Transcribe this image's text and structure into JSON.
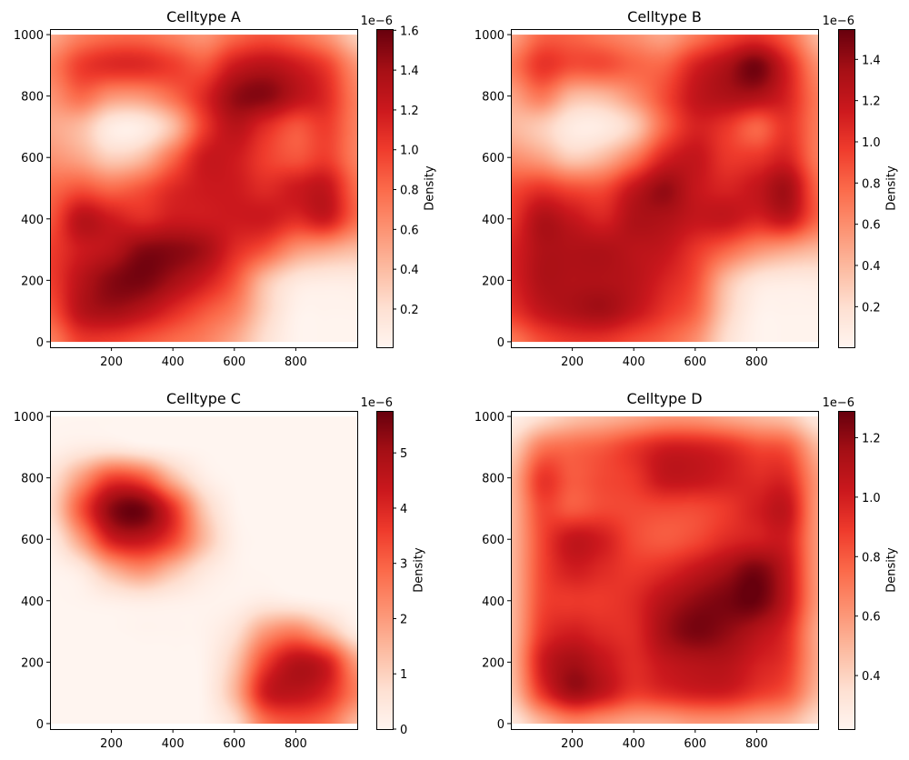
{
  "colormap": "Reds",
  "colormap_stops": [
    "#fff5f0",
    "#fee0d2",
    "#fcbba1",
    "#fc9272",
    "#fb6a4a",
    "#ef3b2c",
    "#cb181d",
    "#a50f15",
    "#67000d"
  ],
  "chart_data": [
    {
      "type": "heatmap",
      "title": "Celltype A",
      "xlim": [
        0,
        1000
      ],
      "ylim": [
        -18,
        1018
      ],
      "xticks": [
        200,
        400,
        600,
        800
      ],
      "xtick_labels": [
        "200",
        "400",
        "600",
        "800"
      ],
      "yticks": [
        0,
        200,
        400,
        600,
        800,
        1000
      ],
      "ytick_labels": [
        "0",
        "200",
        "400",
        "600",
        "800",
        "1000"
      ],
      "x": [
        0,
        100,
        200,
        300,
        400,
        500,
        600,
        700,
        800,
        900,
        1000
      ],
      "y": [
        1000,
        900,
        800,
        700,
        600,
        500,
        400,
        300,
        200,
        100,
        0
      ],
      "z": [
        [
          0.5,
          0.7,
          0.8,
          0.8,
          0.7,
          0.6,
          0.8,
          0.9,
          0.8,
          0.6,
          0.3
        ],
        [
          0.7,
          1.0,
          1.1,
          1.1,
          1.0,
          0.9,
          1.2,
          1.3,
          1.2,
          1.0,
          0.6
        ],
        [
          0.6,
          0.8,
          0.6,
          0.6,
          0.8,
          1.1,
          1.45,
          1.5,
          1.3,
          1.1,
          0.7
        ],
        [
          0.5,
          0.4,
          0.1,
          0.1,
          0.4,
          1.0,
          1.3,
          1.1,
          0.9,
          1.0,
          0.7
        ],
        [
          0.6,
          0.5,
          0.3,
          0.4,
          0.8,
          1.2,
          1.2,
          1.0,
          0.9,
          1.0,
          0.7
        ],
        [
          0.8,
          0.9,
          0.8,
          0.9,
          1.1,
          1.2,
          1.2,
          1.1,
          1.2,
          1.25,
          0.8
        ],
        [
          0.9,
          1.3,
          1.2,
          1.1,
          1.2,
          1.2,
          1.2,
          1.2,
          1.1,
          1.2,
          0.8
        ],
        [
          1.0,
          1.2,
          1.3,
          1.5,
          1.5,
          1.4,
          1.1,
          0.9,
          0.6,
          0.5,
          0.4
        ],
        [
          1.0,
          1.3,
          1.5,
          1.55,
          1.4,
          1.2,
          0.9,
          0.4,
          0.15,
          0.1,
          0.1
        ],
        [
          0.9,
          1.3,
          1.4,
          1.3,
          1.1,
          0.9,
          0.7,
          0.3,
          0.05,
          0.03,
          0.03
        ],
        [
          0.7,
          1.0,
          1.0,
          0.9,
          0.8,
          0.7,
          0.5,
          0.2,
          0.03,
          0.02,
          0.02
        ]
      ],
      "colorbar": {
        "label": "Density",
        "offset_text": "1e−6",
        "range": [
          0.008,
          1.606
        ],
        "ticks": [
          0.2,
          0.4,
          0.6,
          0.8,
          1.0,
          1.2,
          1.4,
          1.6
        ],
        "tick_labels": [
          "0.2",
          "0.4",
          "0.6",
          "0.8",
          "1.0",
          "1.2",
          "1.4",
          "1.6"
        ]
      }
    },
    {
      "type": "heatmap",
      "title": "Celltype B",
      "xlim": [
        0,
        1000
      ],
      "ylim": [
        -18,
        1018
      ],
      "xticks": [
        200,
        400,
        600,
        800
      ],
      "xtick_labels": [
        "200",
        "400",
        "600",
        "800"
      ],
      "yticks": [
        0,
        200,
        400,
        600,
        800,
        1000
      ],
      "ytick_labels": [
        "0",
        "200",
        "400",
        "600",
        "800",
        "1000"
      ],
      "x": [
        0,
        100,
        200,
        300,
        400,
        500,
        600,
        700,
        800,
        900,
        1000
      ],
      "y": [
        1000,
        900,
        800,
        700,
        600,
        500,
        400,
        300,
        200,
        100,
        0
      ],
      "z": [
        [
          0.5,
          0.8,
          0.8,
          0.7,
          0.6,
          0.5,
          0.7,
          0.9,
          1.0,
          0.8,
          0.4
        ],
        [
          0.7,
          1.0,
          0.9,
          0.9,
          0.8,
          0.8,
          1.1,
          1.3,
          1.5,
          1.1,
          0.6
        ],
        [
          0.5,
          0.7,
          0.4,
          0.4,
          0.6,
          0.9,
          1.2,
          1.3,
          1.3,
          1.1,
          0.7
        ],
        [
          0.4,
          0.3,
          0.1,
          0.1,
          0.3,
          0.8,
          1.1,
          1.0,
          0.8,
          1.0,
          0.7
        ],
        [
          0.6,
          0.5,
          0.3,
          0.4,
          0.7,
          1.1,
          1.2,
          1.0,
          1.0,
          1.1,
          0.7
        ],
        [
          0.9,
          1.0,
          0.9,
          0.9,
          1.2,
          1.4,
          1.2,
          1.1,
          1.2,
          1.35,
          0.8
        ],
        [
          1.0,
          1.3,
          1.2,
          1.1,
          1.3,
          1.3,
          1.2,
          1.2,
          1.1,
          1.2,
          0.8
        ],
        [
          1.1,
          1.3,
          1.3,
          1.3,
          1.25,
          1.2,
          1.0,
          0.8,
          0.6,
          0.5,
          0.4
        ],
        [
          1.1,
          1.3,
          1.3,
          1.3,
          1.25,
          1.1,
          0.9,
          0.4,
          0.15,
          0.1,
          0.1
        ],
        [
          1.0,
          1.2,
          1.3,
          1.35,
          1.2,
          1.0,
          0.8,
          0.3,
          0.05,
          0.03,
          0.03
        ],
        [
          0.7,
          0.9,
          1.0,
          1.0,
          0.9,
          0.8,
          0.6,
          0.2,
          0.03,
          0.02,
          0.02
        ]
      ],
      "colorbar": {
        "label": "Density",
        "offset_text": "1e−6",
        "range": [
          0.003,
          1.547
        ],
        "ticks": [
          0.2,
          0.4,
          0.6,
          0.8,
          1.0,
          1.2,
          1.4
        ],
        "tick_labels": [
          "0.2",
          "0.4",
          "0.6",
          "0.8",
          "1.0",
          "1.2",
          "1.4"
        ]
      }
    },
    {
      "type": "heatmap",
      "title": "Celltype C",
      "xlim": [
        0,
        1000
      ],
      "ylim": [
        -18,
        1018
      ],
      "xticks": [
        200,
        400,
        600,
        800
      ],
      "xtick_labels": [
        "200",
        "400",
        "600",
        "800"
      ],
      "yticks": [
        0,
        200,
        400,
        600,
        800,
        1000
      ],
      "ytick_labels": [
        "0",
        "200",
        "400",
        "600",
        "800",
        "1000"
      ],
      "x": [
        0,
        100,
        200,
        300,
        400,
        500,
        600,
        700,
        800,
        900,
        1000
      ],
      "y": [
        1000,
        900,
        800,
        700,
        600,
        500,
        400,
        300,
        200,
        100,
        0
      ],
      "z": [
        [
          0,
          0,
          0,
          0,
          0,
          0,
          0,
          0,
          0,
          0,
          0
        ],
        [
          0.1,
          0.3,
          0.4,
          0.2,
          0.05,
          0,
          0,
          0,
          0,
          0,
          0
        ],
        [
          0.6,
          2.0,
          3.5,
          3.2,
          1.5,
          0.3,
          0,
          0,
          0,
          0,
          0
        ],
        [
          0.8,
          3.2,
          5.3,
          5.6,
          3.8,
          1.2,
          0.1,
          0,
          0,
          0,
          0
        ],
        [
          0.3,
          2.0,
          4.2,
          4.5,
          3.5,
          1.5,
          0.2,
          0,
          0,
          0,
          0
        ],
        [
          0.05,
          0.4,
          1.6,
          2.2,
          1.4,
          0.5,
          0.1,
          0,
          0,
          0,
          0
        ],
        [
          0,
          0.05,
          0.2,
          0.3,
          0.2,
          0.1,
          0.1,
          0.3,
          0.2,
          0.05,
          0
        ],
        [
          0,
          0,
          0,
          0.05,
          0.05,
          0.1,
          0.6,
          2.0,
          2.5,
          1.5,
          0.3
        ],
        [
          0,
          0,
          0,
          0,
          0,
          0.1,
          1.2,
          3.5,
          4.7,
          4.2,
          2.0
        ],
        [
          0,
          0,
          0,
          0,
          0,
          0.1,
          1.5,
          4.2,
          4.6,
          4.0,
          2.5
        ],
        [
          0,
          0,
          0,
          0,
          0,
          0.05,
          0.7,
          2.7,
          3.2,
          2.8,
          1.5
        ]
      ],
      "colorbar": {
        "label": "Density",
        "offset_text": "1e−6",
        "range": [
          0,
          5.76
        ],
        "ticks": [
          0,
          1,
          2,
          3,
          4,
          5
        ],
        "tick_labels": [
          "0",
          "1",
          "2",
          "3",
          "4",
          "5"
        ]
      }
    },
    {
      "type": "heatmap",
      "title": "Celltype D",
      "xlim": [
        0,
        1000
      ],
      "ylim": [
        -18,
        1018
      ],
      "xticks": [
        200,
        400,
        600,
        800
      ],
      "xtick_labels": [
        "200",
        "400",
        "600",
        "800"
      ],
      "yticks": [
        0,
        200,
        400,
        600,
        800,
        1000
      ],
      "ytick_labels": [
        "0",
        "200",
        "400",
        "600",
        "800",
        "1000"
      ],
      "x": [
        0,
        100,
        200,
        300,
        400,
        500,
        600,
        700,
        800,
        900,
        1000
      ],
      "y": [
        1000,
        900,
        800,
        700,
        600,
        500,
        400,
        300,
        200,
        100,
        0
      ],
      "z": [
        [
          0.25,
          0.35,
          0.45,
          0.5,
          0.55,
          0.6,
          0.6,
          0.55,
          0.5,
          0.45,
          0.3
        ],
        [
          0.4,
          0.7,
          0.75,
          0.8,
          0.9,
          1.0,
          1.0,
          0.95,
          0.85,
          0.8,
          0.5
        ],
        [
          0.5,
          0.9,
          0.8,
          0.85,
          0.9,
          1.05,
          1.05,
          1.0,
          0.95,
          0.95,
          0.6
        ],
        [
          0.5,
          0.85,
          0.8,
          0.85,
          0.85,
          0.85,
          0.85,
          0.9,
          1.0,
          1.05,
          0.6
        ],
        [
          0.5,
          0.85,
          1.05,
          1.0,
          0.85,
          0.8,
          0.85,
          0.95,
          1.0,
          1.0,
          0.6
        ],
        [
          0.5,
          0.85,
          1.0,
          0.95,
          0.9,
          0.95,
          1.05,
          1.15,
          1.25,
          1.05,
          0.6
        ],
        [
          0.5,
          0.85,
          0.9,
          0.9,
          0.95,
          1.1,
          1.2,
          1.25,
          1.28,
          1.05,
          0.6
        ],
        [
          0.5,
          0.9,
          1.0,
          0.95,
          0.95,
          1.15,
          1.25,
          1.2,
          1.1,
          0.95,
          0.55
        ],
        [
          0.5,
          1.0,
          1.15,
          1.05,
          0.95,
          1.05,
          1.1,
          1.1,
          1.0,
          0.9,
          0.55
        ],
        [
          0.45,
          0.9,
          1.15,
          1.05,
          0.9,
          0.95,
          1.0,
          1.0,
          0.9,
          0.8,
          0.5
        ],
        [
          0.3,
          0.5,
          0.65,
          0.6,
          0.55,
          0.55,
          0.6,
          0.6,
          0.55,
          0.5,
          0.35
        ]
      ],
      "colorbar": {
        "label": "Density",
        "offset_text": "1e−6",
        "range": [
          0.22,
          1.29
        ],
        "ticks": [
          0.4,
          0.6,
          0.8,
          1.0,
          1.2
        ],
        "tick_labels": [
          "0.4",
          "0.6",
          "0.8",
          "1.0",
          "1.2"
        ]
      }
    }
  ]
}
